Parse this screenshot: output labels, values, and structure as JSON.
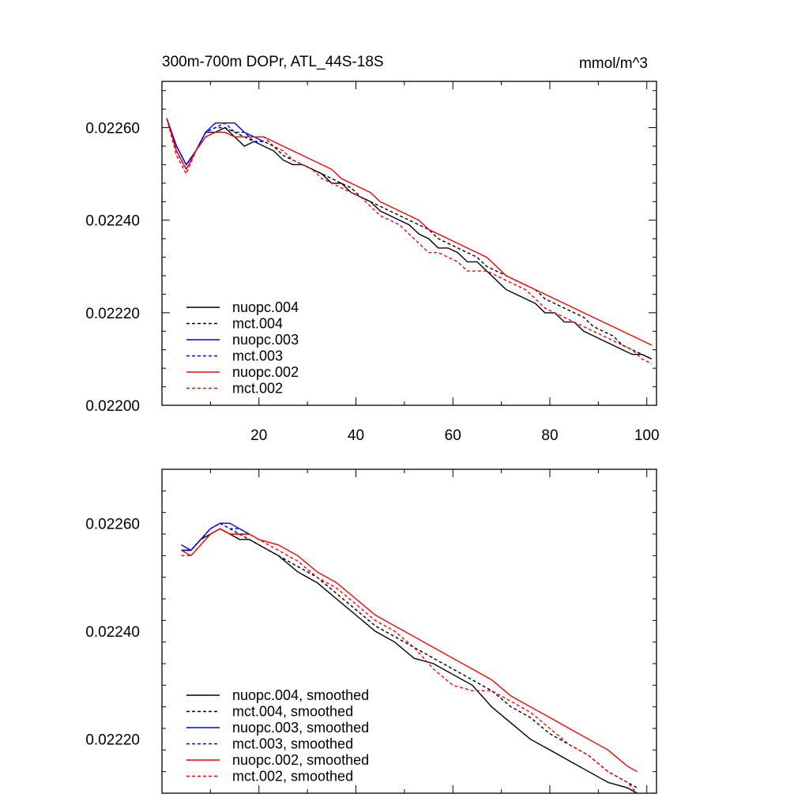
{
  "header": {
    "title": "300m-700m DOPr, ATL_44S-18S",
    "units": "mmol/m^3"
  },
  "colors": {
    "black": "#000000",
    "blue": "#0000ff",
    "red": "#ff0000"
  },
  "chart_data": [
    {
      "type": "line",
      "panel": "top",
      "xlim": [
        0,
        102
      ],
      "ylim": [
        0.022,
        0.0227
      ],
      "xticks": [
        {
          "value": 20,
          "label": "20"
        },
        {
          "value": 40,
          "label": "40"
        },
        {
          "value": 60,
          "label": "60"
        },
        {
          "value": 80,
          "label": "80"
        },
        {
          "value": 100,
          "label": "100"
        }
      ],
      "yticks": [
        {
          "value": 0.022,
          "label": "0.02200"
        },
        {
          "value": 0.0222,
          "label": "0.02220"
        },
        {
          "value": 0.0224,
          "label": "0.02240"
        },
        {
          "value": 0.0226,
          "label": "0.02260"
        }
      ],
      "legend_position": "bottom-left",
      "series": [
        {
          "name": "nuopc.004",
          "color": "#000000",
          "dash": false,
          "x": [
            1,
            3,
            5,
            7,
            9,
            11,
            13,
            15,
            17,
            19,
            21,
            23,
            25,
            27,
            29,
            31,
            33,
            35,
            37,
            39,
            41,
            43,
            45,
            47,
            49,
            51,
            53,
            55,
            57,
            59,
            61,
            63,
            65,
            67,
            69,
            71,
            73,
            75,
            77,
            79,
            81,
            83,
            85,
            87,
            89,
            91,
            93,
            95,
            97,
            99,
            101
          ],
          "y": [
            0.02262,
            0.02256,
            0.02252,
            0.02255,
            0.02259,
            0.02259,
            0.0226,
            0.02258,
            0.02256,
            0.02257,
            0.02256,
            0.02255,
            0.02253,
            0.02252,
            0.02252,
            0.02251,
            0.0225,
            0.02248,
            0.02248,
            0.02246,
            0.02245,
            0.02244,
            0.02242,
            0.02241,
            0.0224,
            0.02239,
            0.02237,
            0.02236,
            0.02234,
            0.02234,
            0.02233,
            0.02231,
            0.02231,
            0.02229,
            0.02227,
            0.02225,
            0.02224,
            0.02223,
            0.02222,
            0.0222,
            0.0222,
            0.02218,
            0.02218,
            0.02216,
            0.02215,
            0.02214,
            0.02213,
            0.02212,
            0.02211,
            0.02211,
            0.0221
          ]
        },
        {
          "name": "mct.004",
          "color": "#000000",
          "dash": true,
          "x": [
            1,
            3,
            5,
            7,
            9,
            11,
            13,
            15,
            17,
            19,
            21,
            23,
            25,
            27,
            29,
            31,
            33,
            35,
            37,
            39,
            41,
            43,
            45,
            47,
            49,
            51,
            53,
            55,
            57,
            59,
            61,
            63,
            65,
            67,
            69,
            71,
            73,
            75,
            77,
            79,
            81,
            83,
            85,
            87,
            89,
            91,
            93,
            95,
            97,
            99,
            101
          ],
          "y": [
            0.02262,
            0.02255,
            0.02251,
            0.02255,
            0.02259,
            0.0226,
            0.0226,
            0.02259,
            0.02258,
            0.02257,
            0.02257,
            0.02256,
            0.02254,
            0.02253,
            0.02252,
            0.02251,
            0.0225,
            0.02249,
            0.02248,
            0.02247,
            0.02245,
            0.02244,
            0.02243,
            0.02242,
            0.02241,
            0.0224,
            0.02239,
            0.02238,
            0.02236,
            0.02235,
            0.02234,
            0.02233,
            0.02232,
            0.0223,
            0.02229,
            0.02228,
            0.02227,
            0.02226,
            0.02225,
            0.02223,
            0.02222,
            0.02221,
            0.0222,
            0.02219,
            0.02217,
            0.02216,
            0.02215,
            0.02213,
            0.02212,
            0.02211,
            0.0221
          ]
        },
        {
          "name": "nuopc.003",
          "color": "#0000ff",
          "dash": false,
          "x": [
            1,
            3,
            5,
            7,
            9,
            11,
            13,
            15,
            17,
            19,
            21
          ],
          "y": [
            0.02262,
            0.02256,
            0.02252,
            0.02255,
            0.02259,
            0.02261,
            0.02261,
            0.02261,
            0.02259,
            0.02258,
            0.02257
          ]
        },
        {
          "name": "mct.003",
          "color": "#0000ff",
          "dash": true,
          "x": [
            1,
            3,
            5,
            7,
            9,
            11,
            13,
            15,
            17,
            19,
            21
          ],
          "y": [
            0.02262,
            0.02255,
            0.02251,
            0.02255,
            0.02259,
            0.0226,
            0.02261,
            0.02259,
            0.02259,
            0.02257,
            0.02257
          ]
        },
        {
          "name": "nuopc.002",
          "color": "#ff0000",
          "dash": false,
          "x": [
            1,
            3,
            5,
            7,
            9,
            11,
            13,
            15,
            17,
            19,
            21,
            23,
            25,
            27,
            29,
            31,
            33,
            35,
            37,
            39,
            41,
            43,
            45,
            47,
            49,
            51,
            53,
            55,
            57,
            59,
            61,
            63,
            65,
            67,
            69,
            71,
            73,
            75,
            77,
            79,
            81,
            83,
            85,
            87,
            89,
            91,
            93,
            95,
            97,
            99,
            101
          ],
          "y": [
            0.02262,
            0.02255,
            0.02251,
            0.02255,
            0.02258,
            0.02259,
            0.02259,
            0.02258,
            0.02258,
            0.02258,
            0.02258,
            0.02257,
            0.02256,
            0.02255,
            0.02254,
            0.02253,
            0.02252,
            0.02251,
            0.02249,
            0.02248,
            0.02247,
            0.02246,
            0.02244,
            0.02243,
            0.02242,
            0.02241,
            0.0224,
            0.02238,
            0.02237,
            0.02236,
            0.02235,
            0.02234,
            0.02233,
            0.02232,
            0.0223,
            0.02228,
            0.02227,
            0.02226,
            0.02225,
            0.02224,
            0.02223,
            0.02222,
            0.02221,
            0.0222,
            0.02219,
            0.02218,
            0.02217,
            0.02216,
            0.02215,
            0.02214,
            0.02213
          ]
        },
        {
          "name": "mct.002",
          "color": "#ff0000",
          "dash": true,
          "x": [
            1,
            3,
            5,
            7,
            9,
            11,
            13,
            15,
            17,
            19,
            21,
            23,
            25,
            27,
            29,
            31,
            33,
            35,
            37,
            39,
            41,
            43,
            45,
            47,
            49,
            51,
            53,
            55,
            57,
            59,
            61,
            63,
            65,
            67,
            69,
            71,
            73,
            75,
            77,
            79,
            81,
            83,
            85,
            87,
            89,
            91,
            93,
            95,
            97,
            99,
            101
          ],
          "y": [
            0.02262,
            0.02254,
            0.0225,
            0.02255,
            0.02258,
            0.02259,
            0.02259,
            0.02258,
            0.02258,
            0.02258,
            0.02258,
            0.02256,
            0.02255,
            0.02253,
            0.02252,
            0.02251,
            0.02249,
            0.02248,
            0.02247,
            0.02246,
            0.02245,
            0.02243,
            0.02241,
            0.0224,
            0.02239,
            0.02237,
            0.02235,
            0.02233,
            0.02233,
            0.02232,
            0.02231,
            0.02229,
            0.02229,
            0.02229,
            0.02228,
            0.02227,
            0.02226,
            0.02225,
            0.02223,
            0.02221,
            0.0222,
            0.02219,
            0.02218,
            0.02217,
            0.02216,
            0.02215,
            0.02214,
            0.02213,
            0.02212,
            0.0221,
            0.02209
          ]
        }
      ]
    },
    {
      "type": "line",
      "panel": "bottom",
      "xlim": [
        0,
        102
      ],
      "ylim": [
        0.0221,
        0.0227
      ],
      "xticks": [
        {
          "value": 20,
          "label": ""
        },
        {
          "value": 40,
          "label": ""
        },
        {
          "value": 60,
          "label": ""
        },
        {
          "value": 80,
          "label": ""
        },
        {
          "value": 100,
          "label": ""
        }
      ],
      "yticks": [
        {
          "value": 0.0222,
          "label": "0.02220"
        },
        {
          "value": 0.0224,
          "label": "0.02240"
        },
        {
          "value": 0.0226,
          "label": "0.02260"
        }
      ],
      "legend_position": "bottom-left",
      "series": [
        {
          "name": "nuopc.004, smoothed",
          "color": "#000000",
          "dash": false,
          "x": [
            4,
            6,
            8,
            10,
            12,
            14,
            16,
            18,
            20,
            24,
            28,
            32,
            36,
            40,
            44,
            48,
            52,
            56,
            60,
            64,
            68,
            72,
            76,
            80,
            84,
            88,
            92,
            96,
            98
          ],
          "y": [
            0.02255,
            0.02255,
            0.02257,
            0.02258,
            0.02259,
            0.02258,
            0.02257,
            0.02257,
            0.02256,
            0.02254,
            0.02251,
            0.02249,
            0.02246,
            0.02243,
            0.0224,
            0.02238,
            0.02235,
            0.02234,
            0.02232,
            0.0223,
            0.02226,
            0.02223,
            0.0222,
            0.02218,
            0.02216,
            0.02214,
            0.02212,
            0.02211,
            0.0221
          ]
        },
        {
          "name": "mct.004, smoothed",
          "color": "#000000",
          "dash": true,
          "x": [
            4,
            6,
            8,
            10,
            12,
            14,
            16,
            18,
            20,
            24,
            28,
            32,
            36,
            40,
            44,
            48,
            52,
            56,
            60,
            64,
            68,
            72,
            76,
            80,
            84,
            88,
            92,
            96,
            98
          ],
          "y": [
            0.02255,
            0.02255,
            0.02257,
            0.02259,
            0.0226,
            0.02259,
            0.02258,
            0.02257,
            0.02256,
            0.02254,
            0.02252,
            0.0225,
            0.02247,
            0.02244,
            0.02241,
            0.02239,
            0.02237,
            0.02235,
            0.02233,
            0.02231,
            0.02229,
            0.02226,
            0.02224,
            0.02221,
            0.02219,
            0.02217,
            0.02214,
            0.02212,
            0.02211
          ]
        },
        {
          "name": "nuopc.003, smoothed",
          "color": "#0000ff",
          "dash": false,
          "x": [
            4,
            6,
            8,
            10,
            12,
            14,
            16,
            18
          ],
          "y": [
            0.02256,
            0.02255,
            0.02257,
            0.02259,
            0.0226,
            0.0226,
            0.02259,
            0.02258
          ]
        },
        {
          "name": "mct.003, smoothed",
          "color": "#0000ff",
          "dash": true,
          "x": [
            4,
            6,
            8,
            10,
            12,
            14,
            16,
            18
          ],
          "y": [
            0.02255,
            0.02255,
            0.02257,
            0.02259,
            0.0226,
            0.02259,
            0.02259,
            0.02258
          ]
        },
        {
          "name": "nuopc.002, smoothed",
          "color": "#ff0000",
          "dash": false,
          "x": [
            4,
            6,
            8,
            10,
            12,
            14,
            16,
            18,
            20,
            24,
            28,
            32,
            36,
            40,
            44,
            48,
            52,
            56,
            60,
            64,
            68,
            72,
            76,
            80,
            84,
            88,
            92,
            96,
            98
          ],
          "y": [
            0.02255,
            0.02254,
            0.02256,
            0.02258,
            0.02259,
            0.02258,
            0.02258,
            0.02258,
            0.02257,
            0.02256,
            0.02254,
            0.02251,
            0.02249,
            0.02246,
            0.02243,
            0.02241,
            0.02239,
            0.02237,
            0.02235,
            0.02233,
            0.02231,
            0.02228,
            0.02226,
            0.02224,
            0.02222,
            0.0222,
            0.02218,
            0.02215,
            0.02214
          ]
        },
        {
          "name": "mct.002, smoothed",
          "color": "#ff0000",
          "dash": true,
          "x": [
            4,
            6,
            8,
            10,
            12,
            14,
            16,
            18,
            20,
            24,
            28,
            32,
            36,
            40,
            44,
            48,
            52,
            56,
            60,
            64,
            68,
            72,
            76,
            80,
            84,
            88,
            92,
            96,
            98
          ],
          "y": [
            0.02254,
            0.02254,
            0.02256,
            0.02258,
            0.02259,
            0.02258,
            0.02258,
            0.02258,
            0.02257,
            0.02255,
            0.02253,
            0.0225,
            0.02248,
            0.02245,
            0.02242,
            0.0224,
            0.02237,
            0.02233,
            0.0223,
            0.02229,
            0.02229,
            0.02227,
            0.02225,
            0.02222,
            0.02219,
            0.02217,
            0.02214,
            0.02212,
            0.0221
          ]
        }
      ]
    }
  ]
}
